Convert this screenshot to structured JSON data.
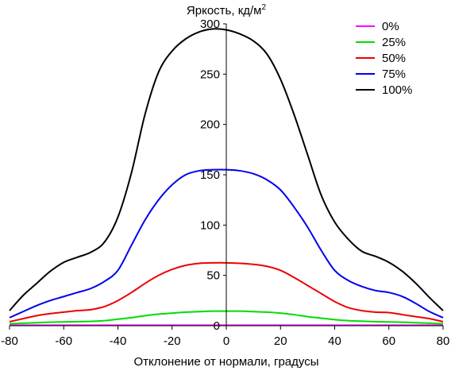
{
  "chart_data": {
    "type": "line",
    "title": "",
    "ylabel": "Яркость, кд/м",
    "ylabel_superscript": "2",
    "xlabel": "Отклонение от нормали, градусы",
    "xlim": [
      -80,
      80
    ],
    "ylim": [
      0,
      300
    ],
    "x_ticks": [
      -80,
      -60,
      -40,
      -20,
      0,
      20,
      40,
      60,
      80
    ],
    "y_ticks": [
      0,
      50,
      100,
      150,
      200,
      250,
      300
    ],
    "grid": false,
    "legend_position": "top-right",
    "x": [
      -80,
      -75,
      -70,
      -65,
      -60,
      -55,
      -50,
      -45,
      -40,
      -35,
      -30,
      -25,
      -20,
      -15,
      -10,
      -5,
      0,
      5,
      10,
      15,
      20,
      25,
      30,
      35,
      40,
      45,
      50,
      55,
      60,
      65,
      70,
      75,
      80
    ],
    "series": [
      {
        "name": "0%",
        "color": "#ff00ff",
        "values": [
          0.5,
          0.5,
          0.5,
          0.5,
          0.5,
          0.5,
          0.5,
          0.5,
          0.5,
          0.5,
          0.5,
          0.5,
          0.5,
          0.5,
          0.5,
          0.5,
          0.5,
          0.5,
          0.5,
          0.5,
          0.5,
          0.5,
          0.5,
          0.5,
          0.5,
          0.5,
          0.5,
          0.5,
          0.5,
          0.5,
          0.5,
          0.5,
          0.5
        ]
      },
      {
        "name": "25%",
        "color": "#00dd00",
        "values": [
          2,
          2.5,
          3,
          3.5,
          3.8,
          4,
          4.3,
          5,
          6.5,
          8,
          10,
          11.5,
          12.5,
          13.5,
          14,
          14.5,
          14.5,
          14.5,
          14,
          13.5,
          12.5,
          11,
          9,
          7.5,
          6,
          5,
          4.5,
          4,
          3.8,
          3.5,
          3,
          2.5,
          2
        ]
      },
      {
        "name": "50%",
        "color": "#ee0000",
        "values": [
          4,
          7,
          10,
          12,
          13.5,
          15,
          16,
          19,
          25,
          33,
          42,
          50,
          56,
          60,
          62,
          62.5,
          62.5,
          62,
          61,
          59,
          55,
          48,
          40,
          32,
          24,
          18,
          15,
          13.5,
          13,
          11,
          9,
          7,
          4
        ]
      },
      {
        "name": "75%",
        "color": "#0000ee",
        "values": [
          8,
          14,
          20,
          25,
          29,
          33,
          37,
          44,
          55,
          80,
          105,
          125,
          140,
          150,
          154,
          155,
          155,
          154,
          151,
          145,
          135,
          118,
          98,
          75,
          55,
          45,
          39,
          35,
          33,
          29,
          22,
          14,
          8
        ]
      },
      {
        "name": "100%",
        "color": "#000000",
        "values": [
          15,
          30,
          42,
          54,
          63,
          68,
          73,
          83,
          108,
          152,
          210,
          252,
          273,
          285,
          292,
          295,
          294,
          290,
          283,
          270,
          245,
          210,
          170,
          130,
          103,
          86,
          74,
          69,
          63,
          54,
          42,
          28,
          15
        ]
      }
    ]
  }
}
